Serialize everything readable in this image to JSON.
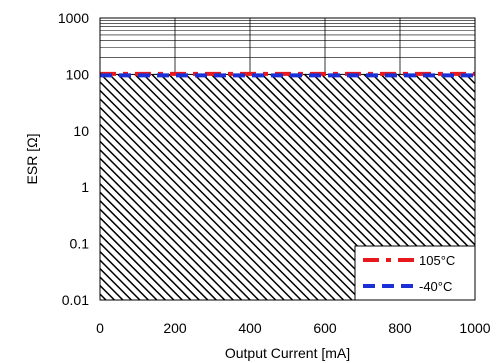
{
  "chart_data": {
    "type": "line",
    "title": "",
    "xlabel": "Output Current [mA]",
    "ylabel": "ESR [Ω]",
    "xlim": [
      0,
      1000
    ],
    "ylim": [
      0.01,
      1000
    ],
    "y_scale": "log",
    "x_ticks": [
      0,
      200,
      400,
      600,
      800,
      1000
    ],
    "x_tick_labels": [
      "0",
      "200",
      "400",
      "600",
      "800",
      "1000"
    ],
    "y_ticks": [
      0.01,
      0.1,
      1,
      10,
      100,
      1000
    ],
    "y_tick_labels": [
      "0.01",
      "0.1",
      "1",
      "10",
      "100",
      "1000"
    ],
    "grid": true,
    "shaded_region": {
      "x": [
        0,
        1000
      ],
      "y": [
        0.01,
        100
      ]
    },
    "legend": {
      "placement": "bottom-right"
    },
    "series": [
      {
        "name": "105°C",
        "color": "#e8191c",
        "dash": "dash-dot",
        "x": [
          0,
          1000
        ],
        "y": [
          100,
          100
        ]
      },
      {
        "name": "-40°C",
        "color": "#1a2fd6",
        "dash": "dashed",
        "x": [
          0,
          1000
        ],
        "y": [
          100,
          100
        ]
      }
    ]
  }
}
